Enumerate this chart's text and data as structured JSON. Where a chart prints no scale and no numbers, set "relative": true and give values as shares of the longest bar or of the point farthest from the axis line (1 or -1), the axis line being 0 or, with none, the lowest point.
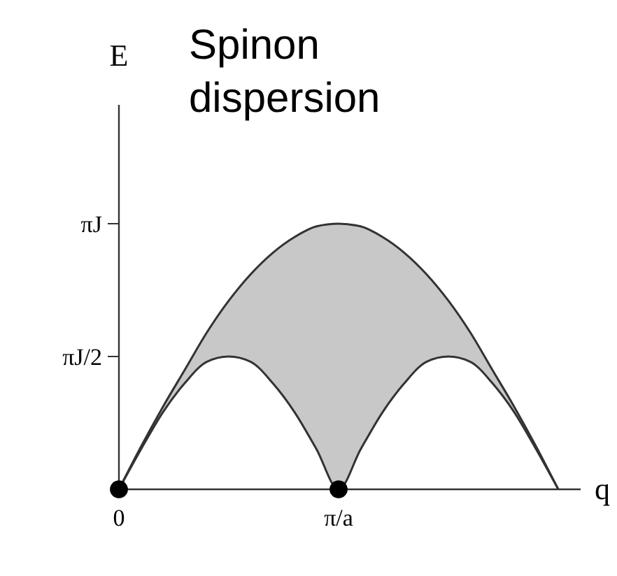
{
  "chart_data": {
    "type": "area",
    "title": "Spinon dispersion",
    "xlabel": "q",
    "ylabel": "E",
    "relative": true,
    "categories": [
      "0",
      null,
      null,
      null,
      null,
      null,
      null,
      null,
      null,
      null,
      "π/a",
      null,
      null,
      null,
      null,
      null,
      null,
      null,
      null,
      null,
      null
    ],
    "series": [
      {
        "color": "#c8c8c8",
        "values": [
          0,
          0.16,
          0.31,
          0.45,
          0.59,
          0.71,
          0.81,
          0.89,
          0.95,
          0.99,
          1,
          0.99,
          0.95,
          0.89,
          0.81,
          0.71,
          0.59,
          0.45,
          0.31,
          0.16,
          0
        ]
      },
      {
        "color": "#ffffff",
        "values": [
          0,
          0.15,
          0.29,
          0.4,
          0.48,
          0.5,
          0.48,
          0.4,
          0.29,
          0.15,
          0,
          0.15,
          0.29,
          0.4,
          0.48,
          0.5,
          0.48,
          0.4,
          0.29,
          0.15,
          0
        ]
      },
      {
        "type": "scatter",
        "color": "#000000",
        "x": [
          "0",
          "π/a"
        ],
        "values": [
          0,
          0
        ],
        "marker": "circle"
      }
    ],
    "annotations": [
      "πJ/2",
      "πJ"
    ],
    "grid": false
  }
}
